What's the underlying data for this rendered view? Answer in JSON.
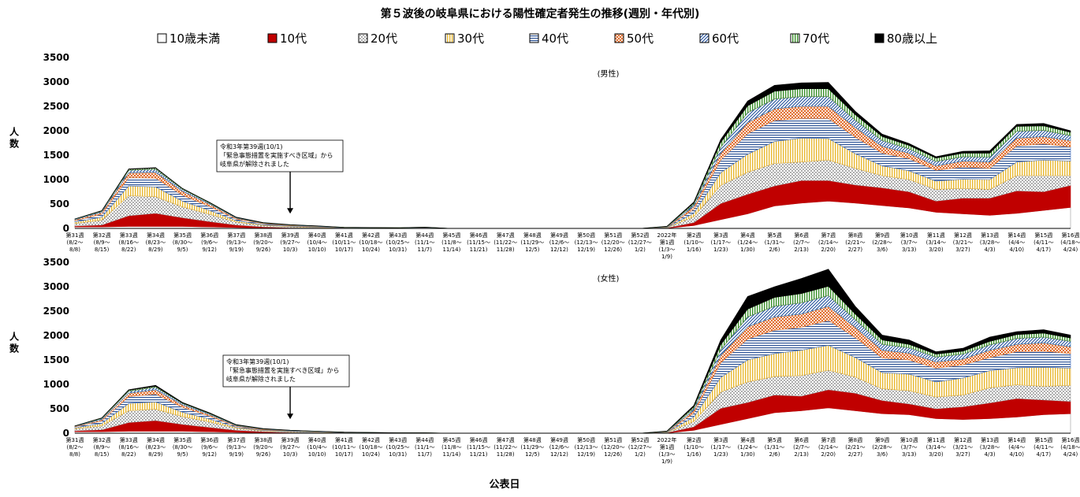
{
  "chart_data": {
    "type": "area",
    "stacked": true,
    "title": "第５波後の岐阜県における陽性確定者発生の推移(週別・年代別)",
    "xlabel": "公表日",
    "ylabel": "人数",
    "ylim": [
      0,
      3500
    ],
    "yticks": [
      "0",
      "500",
      "1000",
      "1500",
      "2000",
      "2500",
      "3000",
      "3500"
    ],
    "legend_position": "top",
    "categories": [
      [
        "第31週",
        "(8/2～",
        "8/8)"
      ],
      [
        "第32週",
        "(8/9～",
        "8/15)"
      ],
      [
        "第33週",
        "(8/16～",
        "8/22)"
      ],
      [
        "第34週",
        "(8/23～",
        "8/29)"
      ],
      [
        "第35週",
        "(8/30～",
        "9/5)"
      ],
      [
        "第36週",
        "(9/6～",
        "9/12)"
      ],
      [
        "第37週",
        "(9/13～",
        "9/19)"
      ],
      [
        "第38週",
        "(9/20～",
        "9/26)"
      ],
      [
        "第39週",
        "(9/27～",
        "10/3)"
      ],
      [
        "第40週",
        "(10/4～",
        "10/10)"
      ],
      [
        "第41週",
        "(10/11～",
        "10/17)"
      ],
      [
        "第42週",
        "(10/18～",
        "10/24)"
      ],
      [
        "第43週",
        "(10/25～",
        "10/31)"
      ],
      [
        "第44週",
        "(11/1～",
        "11/7)"
      ],
      [
        "第45週",
        "(11/8～",
        "11/14)"
      ],
      [
        "第46週",
        "(11/15～",
        "11/21)"
      ],
      [
        "第47週",
        "(11/22～",
        "11/28)"
      ],
      [
        "第48週",
        "(11/29～",
        "12/5)"
      ],
      [
        "第49週",
        "(12/6～",
        "12/12)"
      ],
      [
        "第50週",
        "(12/13～",
        "12/19)"
      ],
      [
        "第51週",
        "(12/20～",
        "12/26)"
      ],
      [
        "第52週",
        "(12/27～",
        "1/2)"
      ],
      [
        "2022年",
        "第1週",
        "(1/3～",
        "1/9)"
      ],
      [
        "第2週",
        "(1/10～",
        "1/16)"
      ],
      [
        "第3週",
        "(1/17～",
        "1/23)"
      ],
      [
        "第4週",
        "(1/24～",
        "1/30)"
      ],
      [
        "第5週",
        "(1/31～",
        "2/6)"
      ],
      [
        "第6週",
        "(2/7～",
        "2/13)"
      ],
      [
        "第7週",
        "(2/14～",
        "2/20)"
      ],
      [
        "第8週",
        "(2/21～",
        "2/27)"
      ],
      [
        "第9週",
        "(2/28～",
        "3/6)"
      ],
      [
        "第10週",
        "(3/7～",
        "3/13)"
      ],
      [
        "第11週",
        "(3/14～",
        "3/20)"
      ],
      [
        "第12週",
        "(3/21～",
        "3/27)"
      ],
      [
        "第13週",
        "(3/28～",
        "4/3)"
      ],
      [
        "第14週",
        "(4/4～",
        "4/10)"
      ],
      [
        "第15週",
        "(4/11～",
        "4/17)"
      ],
      [
        "第16週",
        "(4/18～",
        "4/24)"
      ]
    ],
    "legend": [
      {
        "name": "10歳未満",
        "pattern": "white",
        "color": "#ffffff"
      },
      {
        "name": "10代",
        "pattern": "solid",
        "color": "#c00000"
      },
      {
        "name": "20代",
        "pattern": "dots",
        "color": "#bfbfbf"
      },
      {
        "name": "30代",
        "pattern": "vlines",
        "color": "#ffd966"
      },
      {
        "name": "40代",
        "pattern": "hlines",
        "color": "#8eaadb"
      },
      {
        "name": "50代",
        "pattern": "checker",
        "color": "#f4b183"
      },
      {
        "name": "60代",
        "pattern": "diag",
        "color": "#2e75b6"
      },
      {
        "name": "70代",
        "pattern": "vlines",
        "color": "#70ad47"
      },
      {
        "name": "80歳以上",
        "pattern": "solid",
        "color": "#000000"
      }
    ],
    "panels": [
      {
        "subtitle": "(男性)",
        "annotation": {
          "lines": [
            "令和3年第39週(10/1)",
            "「緊急事態措置を実施すべき区域」から",
            "岐阜県が解除されました"
          ],
          "x_category": "第39週"
        },
        "series": [
          {
            "name": "10歳未満",
            "values": [
              30,
              30,
              40,
              40,
              40,
              30,
              20,
              10,
              5,
              5,
              2,
              2,
              1,
              1,
              0,
              0,
              0,
              0,
              0,
              0,
              0,
              0,
              5,
              60,
              180,
              300,
              460,
              520,
              560,
              520,
              470,
              420,
              330,
              300,
              270,
              310,
              370,
              430
            ]
          },
          {
            "name": "10代",
            "values": [
              20,
              40,
              220,
              270,
              180,
              110,
              50,
              20,
              10,
              5,
              2,
              2,
              1,
              1,
              0,
              0,
              0,
              0,
              0,
              0,
              0,
              0,
              5,
              60,
              330,
              400,
              410,
              460,
              420,
              370,
              360,
              330,
              230,
              320,
              350,
              460,
              380,
              450
            ]
          },
          {
            "name": "20代",
            "values": [
              50,
              100,
              410,
              340,
              220,
              150,
              60,
              30,
              20,
              10,
              5,
              3,
              2,
              5,
              0,
              0,
              0,
              0,
              0,
              0,
              0,
              0,
              5,
              120,
              370,
              450,
              460,
              380,
              420,
              340,
              250,
              250,
              240,
              200,
              180,
              310,
              330,
              200
            ]
          },
          {
            "name": "30代",
            "values": [
              30,
              60,
              200,
              200,
              120,
              80,
              30,
              15,
              10,
              8,
              3,
              2,
              2,
              5,
              0,
              0,
              0,
              0,
              0,
              0,
              0,
              0,
              5,
              70,
              260,
              370,
              450,
              490,
              440,
              300,
              200,
              180,
              170,
              190,
              200,
              280,
              320,
              300
            ]
          },
          {
            "name": "40代",
            "values": [
              30,
              60,
              170,
              180,
              120,
              80,
              30,
              20,
              10,
              8,
              3,
              2,
              2,
              5,
              0,
              0,
              0,
              0,
              0,
              0,
              0,
              0,
              5,
              80,
              260,
              420,
              430,
              400,
              410,
              340,
              260,
              250,
              220,
              250,
              230,
              330,
              330,
              290
            ]
          },
          {
            "name": "50代",
            "values": [
              20,
              40,
              100,
              120,
              80,
              50,
              20,
              10,
              10,
              5,
              3,
              2,
              2,
              3,
              0,
              0,
              0,
              0,
              0,
              0,
              0,
              0,
              5,
              60,
              140,
              230,
              240,
              250,
              250,
              200,
              140,
              110,
              90,
              120,
              130,
              160,
              150,
              130
            ]
          },
          {
            "name": "60代",
            "values": [
              10,
              20,
              50,
              60,
              40,
              20,
              10,
              5,
              5,
              5,
              2,
              2,
              2,
              3,
              0,
              0,
              0,
              0,
              0,
              0,
              0,
              0,
              5,
              40,
              120,
              200,
              200,
              200,
              200,
              150,
              120,
              90,
              90,
              90,
              100,
              140,
              130,
              100
            ]
          },
          {
            "name": "70代",
            "values": [
              3,
              10,
              20,
              25,
              15,
              10,
              5,
              5,
              4,
              4,
              2,
              2,
              2,
              3,
              0,
              0,
              0,
              0,
              0,
              0,
              0,
              0,
              5,
              30,
              100,
              140,
              160,
              160,
              160,
              110,
              80,
              70,
              70,
              70,
              80,
              100,
              90,
              70
            ]
          },
          {
            "name": "80歳以上",
            "values": [
              2,
              5,
              10,
              10,
              5,
              5,
              5,
              5,
              3,
              3,
              2,
              2,
              1,
              2,
              0,
              0,
              0,
              0,
              0,
              0,
              0,
              0,
              5,
              20,
              60,
              100,
              120,
              120,
              130,
              70,
              50,
              40,
              30,
              40,
              50,
              40,
              50,
              30
            ]
          }
        ]
      },
      {
        "subtitle": "(女性)",
        "annotation": {
          "lines": [
            "令和3年第39週(10/1)",
            "「緊急事態措置を実施すべき区域」から",
            "岐阜県が解除されました"
          ],
          "x_category": "第39週"
        },
        "series": [
          {
            "name": "10歳未満",
            "values": [
              30,
              30,
              40,
              40,
              40,
              30,
              20,
              10,
              5,
              5,
              2,
              2,
              1,
              1,
              0,
              0,
              0,
              0,
              0,
              0,
              0,
              0,
              5,
              60,
              180,
              300,
              420,
              460,
              520,
              460,
              400,
              380,
              300,
              280,
              300,
              330,
              380,
              400
            ]
          },
          {
            "name": "10代",
            "values": [
              20,
              40,
              180,
              220,
              140,
              90,
              40,
              20,
              10,
              5,
              2,
              2,
              1,
              1,
              0,
              0,
              0,
              0,
              0,
              0,
              0,
              0,
              5,
              70,
              330,
              330,
              360,
              300,
              370,
              360,
              270,
              220,
              200,
              260,
              320,
              380,
              300,
              250
            ]
          },
          {
            "name": "20代",
            "values": [
              40,
              80,
              240,
              230,
              160,
              110,
              40,
              20,
              15,
              10,
              5,
              3,
              2,
              2,
              0,
              0,
              0,
              0,
              0,
              0,
              0,
              0,
              5,
              110,
              330,
              420,
              380,
              420,
              400,
              330,
              240,
              270,
              240,
              240,
              310,
              280,
              280,
              330
            ]
          },
          {
            "name": "30代",
            "values": [
              20,
              50,
              150,
              150,
              90,
              60,
              20,
              10,
              8,
              5,
              3,
              2,
              1,
              1,
              0,
              0,
              0,
              0,
              0,
              0,
              0,
              0,
              5,
              90,
              300,
              450,
              470,
              520,
              510,
              400,
              330,
              340,
              310,
              350,
              350,
              350,
              390,
              350
            ]
          },
          {
            "name": "40代",
            "values": [
              20,
              50,
              140,
              160,
              100,
              60,
              20,
              10,
              8,
              5,
              3,
              2,
              1,
              1,
              0,
              0,
              0,
              0,
              0,
              0,
              0,
              0,
              5,
              80,
              300,
              430,
              480,
              470,
              510,
              410,
              300,
              290,
              280,
              270,
              270,
              330,
              330,
              300
            ]
          },
          {
            "name": "50代",
            "values": [
              10,
              30,
              70,
              90,
              50,
              30,
              15,
              10,
              5,
              5,
              2,
              2,
              1,
              1,
              0,
              0,
              0,
              0,
              0,
              0,
              0,
              0,
              5,
              60,
              150,
              250,
              270,
              270,
              290,
              210,
              160,
              140,
              130,
              120,
              150,
              150,
              170,
              140
            ]
          },
          {
            "name": "60代",
            "values": [
              5,
              20,
              40,
              50,
              30,
              20,
              10,
              5,
              5,
              3,
              2,
              1,
              1,
              1,
              0,
              0,
              0,
              0,
              0,
              0,
              0,
              0,
              5,
              40,
              120,
              200,
              220,
              230,
              220,
              160,
              120,
              110,
              100,
              100,
              110,
              120,
              120,
              110
            ]
          },
          {
            "name": "70代",
            "values": [
              3,
              10,
              20,
              20,
              10,
              10,
              5,
              5,
              3,
              2,
              2,
              1,
              1,
              1,
              0,
              0,
              0,
              0,
              0,
              0,
              0,
              0,
              5,
              30,
              100,
              160,
              180,
              190,
              190,
              110,
              90,
              70,
              60,
              60,
              70,
              80,
              80,
              70
            ]
          },
          {
            "name": "80歳以上",
            "values": [
              2,
              5,
              10,
              20,
              10,
              10,
              5,
              5,
              3,
              2,
              2,
              1,
              1,
              1,
              0,
              0,
              0,
              0,
              0,
              0,
              0,
              0,
              5,
              30,
              100,
              260,
              220,
              310,
              350,
              160,
              100,
              90,
              50,
              60,
              90,
              60,
              70,
              60
            ]
          }
        ]
      }
    ]
  }
}
